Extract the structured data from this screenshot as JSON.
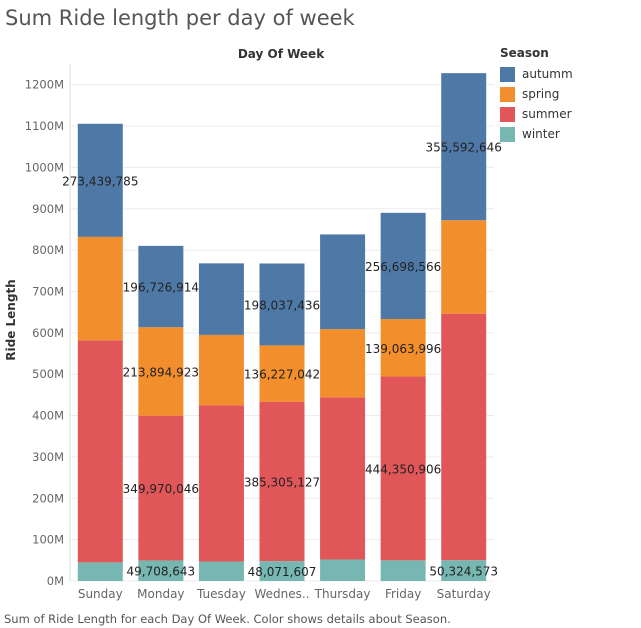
{
  "title": "Sum Ride length per day of week",
  "caption": "Sum of Ride Length for each Day Of Week.  Color shows details about Season.",
  "colors": {
    "autumm": "#4e79a7",
    "spring": "#f28e2b",
    "summer": "#e15759",
    "winter": "#76b7b2",
    "grid": "#ececec",
    "axis_text": "#666666"
  },
  "chart_data": {
    "type": "bar",
    "stacked": true,
    "title": "Sum Ride length per day of week",
    "column_header": "Day Of Week",
    "xlabel": "",
    "ylabel": "Ride Length",
    "ylim": [
      0,
      1250000000
    ],
    "yticks": [
      0,
      100000000,
      200000000,
      300000000,
      400000000,
      500000000,
      600000000,
      700000000,
      800000000,
      900000000,
      1000000000,
      1100000000,
      1200000000
    ],
    "ytick_labels": [
      "0M",
      "100M",
      "200M",
      "300M",
      "400M",
      "500M",
      "600M",
      "700M",
      "800M",
      "900M",
      "1000M",
      "1100M",
      "1200M"
    ],
    "categories": [
      "Sunday",
      "Monday",
      "Tuesday",
      "Wednesday",
      "Thursday",
      "Friday",
      "Saturday"
    ],
    "category_labels": [
      "Sunday",
      "Monday",
      "Tuesday",
      "Wednes..",
      "Thursday",
      "Friday",
      "Saturday"
    ],
    "legend_title": "Season",
    "legend_position": "right",
    "grid": true,
    "series": [
      {
        "name": "winter",
        "color_key": "winter",
        "values": [
          45000000,
          49708643,
          47000000,
          48071607,
          52000000,
          50000000,
          50324573
        ],
        "labels": [
          "",
          "49,708,643",
          "",
          "48,071,607",
          "",
          "",
          "50,324,573"
        ]
      },
      {
        "name": "summer",
        "color_key": "summer",
        "values": [
          537000000,
          349970046,
          378000000,
          385305127,
          392000000,
          444350906,
          596000000
        ],
        "labels": [
          "",
          "349,970,046",
          "",
          "385,305,127",
          "",
          "444,350,906",
          ""
        ]
      },
      {
        "name": "spring",
        "color_key": "spring",
        "values": [
          250000000,
          213894923,
          170000000,
          136227042,
          165000000,
          139063996,
          226000000
        ],
        "labels": [
          "",
          "213,894,923",
          "",
          "136,227,042",
          "",
          "139,063,996",
          ""
        ]
      },
      {
        "name": "autumm",
        "color_key": "autumm",
        "values": [
          273439785,
          196726914,
          173000000,
          198037436,
          229000000,
          256698566,
          355592646
        ],
        "labels": [
          "273,439,785",
          "196,726,914",
          "",
          "198,037,436",
          "",
          "256,698,566",
          "355,592,646"
        ]
      }
    ],
    "legend": [
      "autumm",
      "spring",
      "summer",
      "winter"
    ]
  }
}
